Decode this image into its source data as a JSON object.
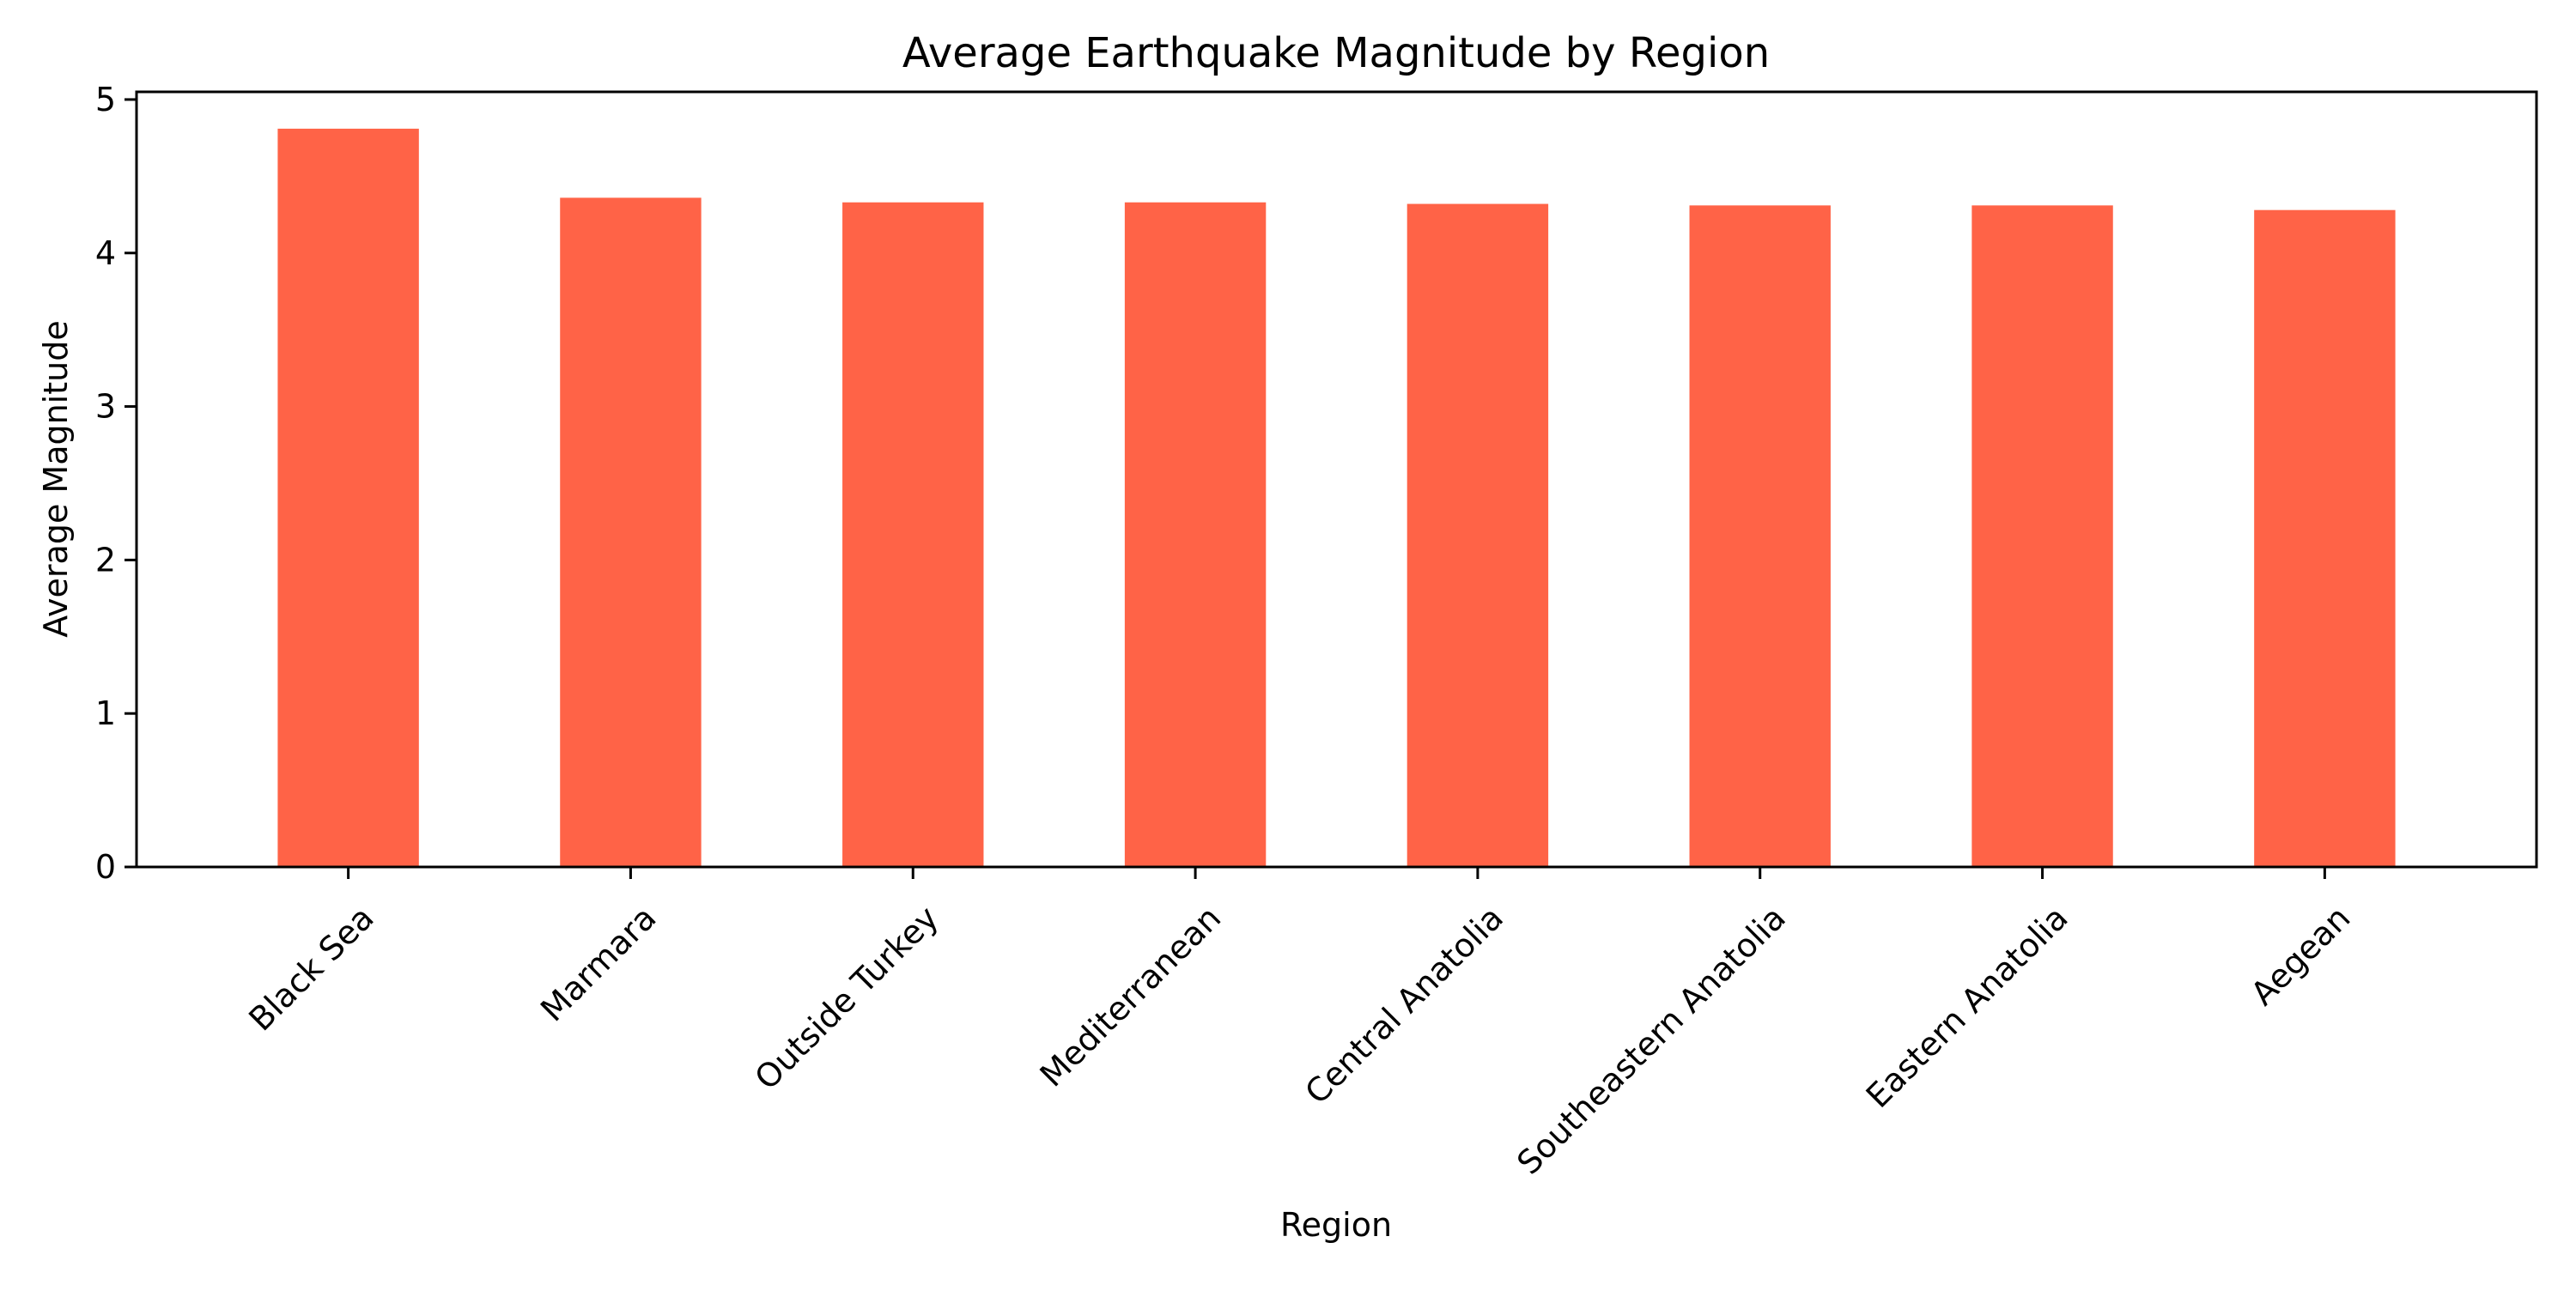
{
  "chart_data": {
    "type": "bar",
    "title": "Average Earthquake Magnitude by Region",
    "xlabel": "Region",
    "ylabel": "Average Magnitude",
    "categories": [
      "Black Sea",
      "Marmara",
      "Outside Turkey",
      "Mediterranean",
      "Central Anatolia",
      "Southeastern Anatolia",
      "Eastern Anatolia",
      "Aegean"
    ],
    "values": [
      4.81,
      4.36,
      4.33,
      4.33,
      4.32,
      4.31,
      4.31,
      4.28
    ],
    "ylim": [
      0,
      5.05
    ],
    "yticks": [
      "0",
      "1",
      "2",
      "3",
      "4",
      "5"
    ],
    "grid": false,
    "legend": "none",
    "bar_color": "#ff6347"
  }
}
